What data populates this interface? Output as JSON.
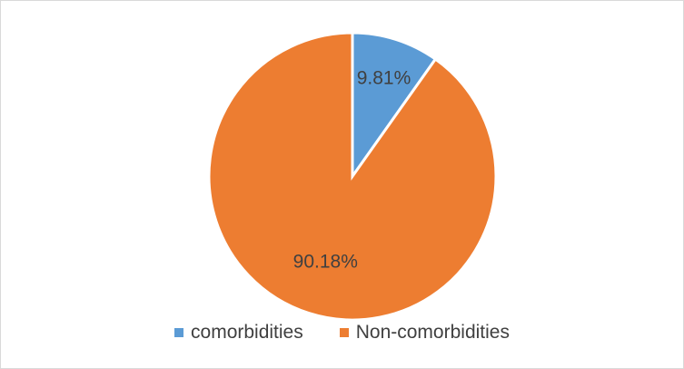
{
  "chart_data": {
    "type": "pie",
    "title": "",
    "categories": [
      "comorbidities",
      "Non-comorbidities"
    ],
    "values": [
      9.81,
      90.18
    ],
    "data_labels": [
      "9.81%",
      "90.18%"
    ],
    "colors": [
      "#5B9BD5",
      "#ED7D31"
    ],
    "start_angle_deg": 0,
    "direction": "clockwise",
    "legend_position": "bottom"
  }
}
